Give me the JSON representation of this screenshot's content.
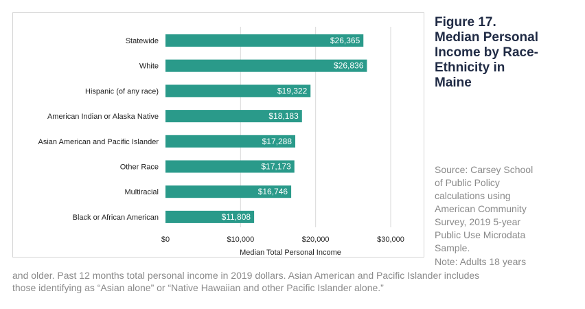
{
  "figure": {
    "title_lines": [
      "Figure 17.",
      "Median Personal",
      "Income by Race-",
      "Ethnicity in",
      "Maine"
    ]
  },
  "source": {
    "lines": [
      "Source: Carsey School",
      "of Public Policy",
      "calculations using",
      "American Community",
      "Survey, 2019 5-year",
      "Public Use Microdata",
      "Sample."
    ]
  },
  "note": {
    "first_line": "Note: Adults 18 years",
    "rest_lines": [
      "and older. Past 12 months total personal income in 2019 dollars. Asian American and Pacific Islander includes",
      "those identifying as “Asian alone” or “Native Hawaiian and other Pacific Islander alone.”"
    ]
  },
  "colors": {
    "bar": "#2a9a8a",
    "grid": "#d9d9d9"
  },
  "chart_data": {
    "type": "bar",
    "orientation": "horizontal",
    "categories": [
      "Statewide",
      "White",
      "Hispanic (of any race)",
      "American Indian or Alaska Native",
      "Asian American and Pacific Islander",
      "Other Race",
      "Multiracial",
      "Black or African American"
    ],
    "values": [
      26365,
      26836,
      19322,
      18183,
      17288,
      17173,
      16746,
      11808
    ],
    "value_labels": [
      "$26,365",
      "$26,836",
      "$19,322",
      "$18,183",
      "$17,288",
      "$17,173",
      "$16,746",
      "$11,808"
    ],
    "xlim": [
      0,
      30000
    ],
    "xticks": [
      0,
      10000,
      20000,
      30000
    ],
    "xtick_labels": [
      "$0",
      "$10,000",
      "$20,000",
      "$30,000"
    ],
    "xlabel": "Median Total Personal Income",
    "ylabel": "",
    "title": "",
    "grid": true,
    "legend": "none"
  }
}
